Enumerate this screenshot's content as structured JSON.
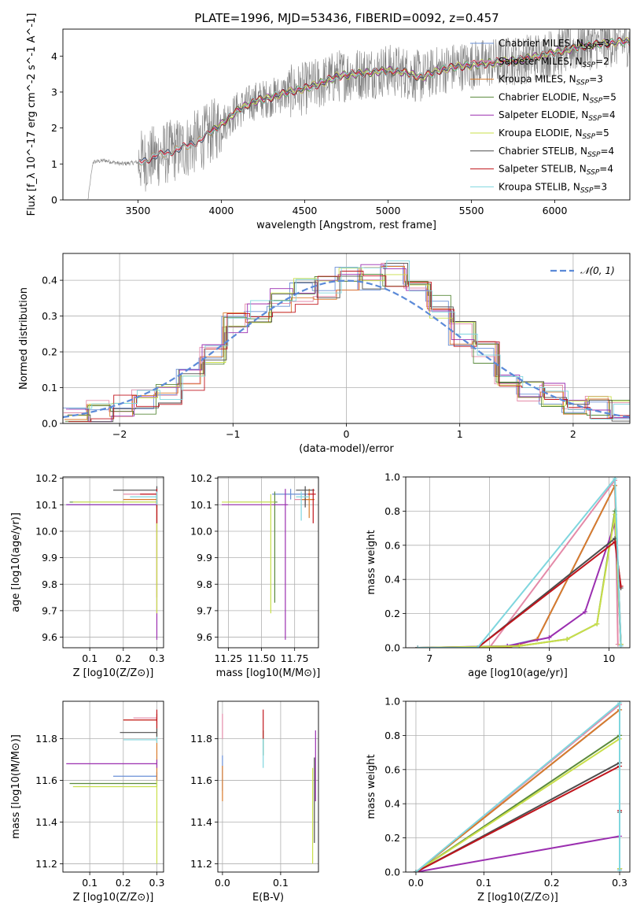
{
  "figure": {
    "title": "PLATE=1996, MJD=53436, FIBERID=0092, z=0.457"
  },
  "models": [
    {
      "name": "Chabrier MILES",
      "nssp": "3",
      "color": "#6a8fd6"
    },
    {
      "name": "Salpeter MILES",
      "nssp": "2",
      "color": "#e48aa8"
    },
    {
      "name": "Kroupa MILES",
      "nssp": "3",
      "color": "#d97b2b"
    },
    {
      "name": "Chabrier ELODIE",
      "nssp": "5",
      "color": "#5a8a3c"
    },
    {
      "name": "Salpeter ELODIE",
      "nssp": "4",
      "color": "#9b2fb0"
    },
    {
      "name": "Kroupa ELODIE",
      "nssp": "5",
      "color": "#c9df4a"
    },
    {
      "name": "Chabrier STELIB",
      "nssp": "4",
      "color": "#4d4d4d"
    },
    {
      "name": "Salpeter STELIB",
      "nssp": "4",
      "color": "#c0141c"
    },
    {
      "name": "Kroupa STELIB",
      "nssp": "3",
      "color": "#7fd6de"
    }
  ],
  "chart_data": [
    {
      "id": "spectrum",
      "type": "line",
      "xlabel": "wavelength [Angstrom, rest frame]",
      "ylabel": "Flux [f_λ 10^-17 erg cm^-2 s^-1 A^-1]",
      "xlim": [
        3050,
        6450
      ],
      "ylim": [
        0,
        4.75
      ],
      "xticks": [
        "3500",
        "4000",
        "4500",
        "5000",
        "5500",
        "6000"
      ],
      "yticks": [
        "0",
        "1",
        "2",
        "3",
        "4"
      ],
      "data_color": "#808080",
      "continuum": {
        "x": [
          3200,
          3230,
          3300,
          3400,
          3500,
          3600,
          3700,
          3800,
          3900,
          4000,
          4100,
          4200,
          4300,
          4400,
          4500,
          4600,
          4700,
          4800,
          4900,
          5000,
          5100,
          5200,
          5300,
          5400,
          5500,
          5600,
          5700,
          5800,
          5900,
          6000,
          6100,
          6200,
          6300,
          6400
        ],
        "y": [
          0,
          1.05,
          1.1,
          1.0,
          1.05,
          1.2,
          1.35,
          1.5,
          1.75,
          2.1,
          2.5,
          2.75,
          2.85,
          3.0,
          3.1,
          3.25,
          3.45,
          3.5,
          3.55,
          3.6,
          3.55,
          3.4,
          3.6,
          3.7,
          3.75,
          3.8,
          3.85,
          3.9,
          4.0,
          4.1,
          4.2,
          4.3,
          4.35,
          4.4
        ]
      },
      "model_start": [
        3510,
        3510,
        3510,
        3940,
        3940,
        3940,
        3510,
        3510,
        3510
      ]
    },
    {
      "id": "residuals",
      "type": "line",
      "xlabel": "(data-model)/error",
      "ylabel": "Normed distribution",
      "xlim": [
        -2.5,
        2.5
      ],
      "ylim": [
        0,
        0.475
      ],
      "xticks": [
        "−2",
        "−1",
        "0",
        "1",
        "2"
      ],
      "yticks": [
        "0.0",
        "0.1",
        "0.2",
        "0.3",
        "0.4"
      ],
      "gaussian_label": "𝒩(0, 1)",
      "gaussian_color": "#5b8ad8",
      "bin_edges": [
        -2.5,
        -2.3,
        -2.1,
        -1.9,
        -1.7,
        -1.5,
        -1.3,
        -1.1,
        -0.9,
        -0.7,
        -0.5,
        -0.3,
        -0.1,
        0.1,
        0.3,
        0.5,
        0.7,
        0.9,
        1.1,
        1.3,
        1.5,
        1.7,
        1.9,
        2.1,
        2.3,
        2.5
      ],
      "base_hist": [
        0.025,
        0.03,
        0.045,
        0.06,
        0.09,
        0.12,
        0.2,
        0.29,
        0.31,
        0.34,
        0.37,
        0.38,
        0.4,
        0.41,
        0.42,
        0.4,
        0.33,
        0.25,
        0.2,
        0.14,
        0.1,
        0.075,
        0.055,
        0.04,
        0.03
      ],
      "gaussian_mean": 0,
      "gaussian_sigma": 1
    },
    {
      "id": "age-vs-Z",
      "type": "scatter",
      "xlabel": "Z [log10(Z/Z⊙)]",
      "ylabel": "age [log10(age/yr)]",
      "xlim": [
        0.02,
        0.32
      ],
      "ylim": [
        9.56,
        10.205
      ],
      "xticks": [
        "0.1",
        "0.2",
        "0.3"
      ],
      "yticks": [
        "9.6",
        "9.7",
        "9.8",
        "9.9",
        "10.0",
        "10.1",
        "10.2"
      ],
      "points": [
        {
          "x": 0.3,
          "y": 10.1,
          "xlo": 0.03,
          "xhi": 0.3,
          "ylo": 10.09,
          "yhi": 10.12
        },
        {
          "x": 0.3,
          "y": 10.14,
          "xlo": 0.2,
          "xhi": 0.3,
          "ylo": 10.12,
          "yhi": 10.16
        },
        {
          "x": 0.3,
          "y": 10.12,
          "xlo": 0.2,
          "xhi": 0.3,
          "ylo": 9.75,
          "yhi": 10.14
        },
        {
          "x": 0.3,
          "y": 10.11,
          "xlo": 0.04,
          "xhi": 0.3,
          "ylo": 10.09,
          "yhi": 10.13
        },
        {
          "x": 0.3,
          "y": 10.1,
          "xlo": 0.03,
          "xhi": 0.3,
          "ylo": 9.59,
          "yhi": 10.12
        },
        {
          "x": 0.3,
          "y": 10.11,
          "xlo": 0.05,
          "xhi": 0.3,
          "ylo": 9.69,
          "yhi": 10.13
        },
        {
          "x": 0.3,
          "y": 10.155,
          "xlo": 0.17,
          "xhi": 0.3,
          "ylo": 10.13,
          "yhi": 10.17
        },
        {
          "x": 0.3,
          "y": 10.14,
          "xlo": 0.25,
          "xhi": 0.3,
          "ylo": 10.03,
          "yhi": 10.16
        },
        {
          "x": 0.3,
          "y": 10.13,
          "xlo": 0.22,
          "xhi": 0.3,
          "ylo": 10.1,
          "yhi": 10.15
        }
      ]
    },
    {
      "id": "age-vs-mass",
      "type": "scatter",
      "xlabel": "mass [log10(M/M⊙)]",
      "ylabel": "",
      "xlim": [
        11.17,
        11.93
      ],
      "ylim": [
        9.56,
        10.205
      ],
      "xticks": [
        "11.25",
        "11.50",
        "11.75"
      ],
      "yticks": [
        "9.6",
        "9.7",
        "9.8",
        "9.9",
        "10.0",
        "10.1",
        "10.2"
      ],
      "points": [
        {
          "x": 11.72,
          "y": 10.14,
          "xlo": 11.58,
          "xhi": 11.85,
          "ylo": 10.12,
          "yhi": 10.16
        },
        {
          "x": 11.83,
          "y": 10.12,
          "xlo": 11.75,
          "xhi": 11.9,
          "ylo": 10.1,
          "yhi": 10.14
        },
        {
          "x": 11.86,
          "y": 10.12,
          "xlo": 11.8,
          "xhi": 11.9,
          "ylo": 10.05,
          "yhi": 10.16
        },
        {
          "x": 11.6,
          "y": 10.11,
          "xlo": 11.25,
          "xhi": 11.62,
          "ylo": 9.73,
          "yhi": 10.15
        },
        {
          "x": 11.68,
          "y": 10.1,
          "xlo": 11.2,
          "xhi": 11.7,
          "ylo": 9.59,
          "yhi": 10.16
        },
        {
          "x": 11.57,
          "y": 10.11,
          "xlo": 11.2,
          "xhi": 11.6,
          "ylo": 9.69,
          "yhi": 10.14
        },
        {
          "x": 11.83,
          "y": 10.155,
          "xlo": 11.76,
          "xhi": 11.9,
          "ylo": 10.09,
          "yhi": 10.17
        },
        {
          "x": 11.89,
          "y": 10.14,
          "xlo": 11.85,
          "xhi": 11.91,
          "ylo": 10.03,
          "yhi": 10.16
        },
        {
          "x": 11.8,
          "y": 10.13,
          "xlo": 11.76,
          "xhi": 11.86,
          "ylo": 10.04,
          "yhi": 10.15
        }
      ]
    },
    {
      "id": "mass-weight-vs-age",
      "type": "line",
      "xlabel": "age [log10(age/yr)]",
      "ylabel": "mass weight",
      "xlim": [
        6.6,
        10.35
      ],
      "ylim": [
        0,
        1.0
      ],
      "xticks": [
        "7",
        "8",
        "9",
        "10"
      ],
      "yticks": [
        "0.0",
        "0.2",
        "0.4",
        "0.6",
        "0.8",
        "1.0"
      ],
      "series": [
        {
          "x": [
            6.8,
            7.8,
            8.3,
            8.8,
            10.1,
            10.2
          ],
          "y": [
            0,
            0,
            0.01,
            0.05,
            0.95,
            0.02
          ]
        },
        {
          "x": [
            6.8,
            8.0,
            10.1,
            10.15
          ],
          "y": [
            0,
            0,
            0.98,
            0.02
          ]
        },
        {
          "x": [
            6.8,
            8.3,
            8.8,
            10.1,
            10.2
          ],
          "y": [
            0,
            0,
            0.05,
            0.95,
            0.02
          ]
        },
        {
          "x": [
            6.8,
            8.5,
            9.3,
            9.8,
            10.1,
            10.2
          ],
          "y": [
            0,
            0.01,
            0.05,
            0.14,
            0.8,
            0.02
          ]
        },
        {
          "x": [
            6.8,
            8.3,
            9.0,
            9.6,
            10.1,
            10.2
          ],
          "y": [
            0,
            0.01,
            0.06,
            0.21,
            0.73,
            0.02
          ]
        },
        {
          "x": [
            6.8,
            8.5,
            9.3,
            9.8,
            10.1,
            10.2
          ],
          "y": [
            0,
            0.01,
            0.05,
            0.14,
            0.78,
            0.02
          ]
        },
        {
          "x": [
            6.8,
            7.8,
            10.1,
            10.2
          ],
          "y": [
            0,
            0,
            0.64,
            0.35
          ]
        },
        {
          "x": [
            6.8,
            7.8,
            10.1,
            10.2
          ],
          "y": [
            0,
            0,
            0.62,
            0.36
          ]
        },
        {
          "x": [
            6.8,
            7.8,
            10.1,
            10.2
          ],
          "y": [
            0,
            0,
            0.99,
            0.01
          ]
        }
      ]
    },
    {
      "id": "mass-vs-Z",
      "type": "scatter",
      "xlabel": "Z [log10(Z/Z⊙)]",
      "ylabel": "mass [log10(M/M⊙)]",
      "xlim": [
        0.02,
        0.32
      ],
      "ylim": [
        11.16,
        11.98
      ],
      "xticks": [
        "0.1",
        "0.2",
        "0.3"
      ],
      "yticks": [
        "11.2",
        "11.4",
        "11.6",
        "11.8"
      ],
      "points": [
        {
          "x": 0.3,
          "y": 11.62,
          "xlo": 0.17,
          "xhi": 0.3,
          "ylo": 11.6,
          "yhi": 11.64
        },
        {
          "x": 0.3,
          "y": 11.9,
          "xlo": 0.23,
          "xhi": 0.3,
          "ylo": 11.88,
          "yhi": 11.92
        },
        {
          "x": 0.3,
          "y": 11.89,
          "xlo": 0.2,
          "xhi": 0.3,
          "ylo": 11.6,
          "yhi": 11.92
        },
        {
          "x": 0.3,
          "y": 11.585,
          "xlo": 0.04,
          "xhi": 0.3,
          "ylo": 11.57,
          "yhi": 11.6
        },
        {
          "x": 0.3,
          "y": 11.68,
          "xlo": 0.03,
          "xhi": 0.3,
          "ylo": 11.66,
          "yhi": 11.7
        },
        {
          "x": 0.3,
          "y": 11.57,
          "xlo": 0.05,
          "xhi": 0.3,
          "ylo": 11.2,
          "yhi": 11.6
        },
        {
          "x": 0.3,
          "y": 11.83,
          "xlo": 0.19,
          "xhi": 0.3,
          "ylo": 11.81,
          "yhi": 11.85
        },
        {
          "x": 0.3,
          "y": 11.89,
          "xlo": 0.2,
          "xhi": 0.3,
          "ylo": 11.85,
          "yhi": 11.94
        },
        {
          "x": 0.3,
          "y": 11.795,
          "xlo": 0.2,
          "xhi": 0.3,
          "ylo": 11.78,
          "yhi": 11.81
        }
      ]
    },
    {
      "id": "mass-vs-ebv",
      "type": "scatter",
      "xlabel": "E(B-V)",
      "ylabel": "",
      "xlim": [
        -0.008,
        0.165
      ],
      "ylim": [
        11.16,
        11.98
      ],
      "xticks": [
        "0.0",
        "0.1"
      ],
      "yticks": [
        "11.2",
        "11.4",
        "11.6",
        "11.8"
      ],
      "points": [
        {
          "x": 0.0,
          "y": 11.62,
          "ylo": 11.55,
          "yhi": 11.72
        },
        {
          "x": 0.0,
          "y": 11.85,
          "ylo": 11.8,
          "yhi": 11.92
        },
        {
          "x": 0.0,
          "y": 11.6,
          "ylo": 11.5,
          "yhi": 11.67
        },
        {
          "x": 0.07,
          "y": 11.77,
          "ylo": 11.72,
          "yhi": 11.84
        },
        {
          "x": 0.16,
          "y": 11.68,
          "ylo": 11.5,
          "yhi": 11.84
        },
        {
          "x": 0.155,
          "y": 11.6,
          "ylo": 11.2,
          "yhi": 11.66
        },
        {
          "x": 0.158,
          "y": 11.6,
          "ylo": 11.3,
          "yhi": 11.71
        },
        {
          "x": 0.07,
          "y": 11.9,
          "ylo": 11.8,
          "yhi": 11.94
        },
        {
          "x": 0.07,
          "y": 11.75,
          "ylo": 11.66,
          "yhi": 11.8
        }
      ]
    },
    {
      "id": "mass-weight-vs-Z",
      "type": "line",
      "xlabel": "Z [log10(Z/Z⊙)]",
      "ylabel": "mass weight",
      "xlim": [
        -0.015,
        0.315
      ],
      "ylim": [
        0,
        1.0
      ],
      "xticks": [
        "0.0",
        "0.1",
        "0.2",
        "0.3"
      ],
      "yticks": [
        "0.0",
        "0.2",
        "0.4",
        "0.6",
        "0.8",
        "1.0"
      ],
      "series": [
        {
          "x": [
            0.0,
            0.3,
            0.3
          ],
          "y": [
            0,
            0.95,
            0.02
          ]
        },
        {
          "x": [
            0.0,
            0.3,
            0.3
          ],
          "y": [
            0,
            0.98,
            0.02
          ]
        },
        {
          "x": [
            0.0,
            0.3,
            0.3
          ],
          "y": [
            0,
            0.95,
            0.02
          ]
        },
        {
          "x": [
            0.0,
            0.3,
            0.3
          ],
          "y": [
            0,
            0.8,
            0.02
          ]
        },
        {
          "x": [
            0.0,
            0.3,
            0.3
          ],
          "y": [
            0,
            0.21,
            0.02
          ]
        },
        {
          "x": [
            0.0,
            0.3,
            0.3
          ],
          "y": [
            0,
            0.78,
            0.02
          ]
        },
        {
          "x": [
            0.0,
            0.3,
            0.3
          ],
          "y": [
            0,
            0.64,
            0.35
          ]
        },
        {
          "x": [
            0.0,
            0.3,
            0.3
          ],
          "y": [
            0,
            0.62,
            0.36
          ]
        },
        {
          "x": [
            0.0,
            0.3,
            0.3
          ],
          "y": [
            0,
            0.99,
            0.01
          ]
        }
      ]
    }
  ]
}
